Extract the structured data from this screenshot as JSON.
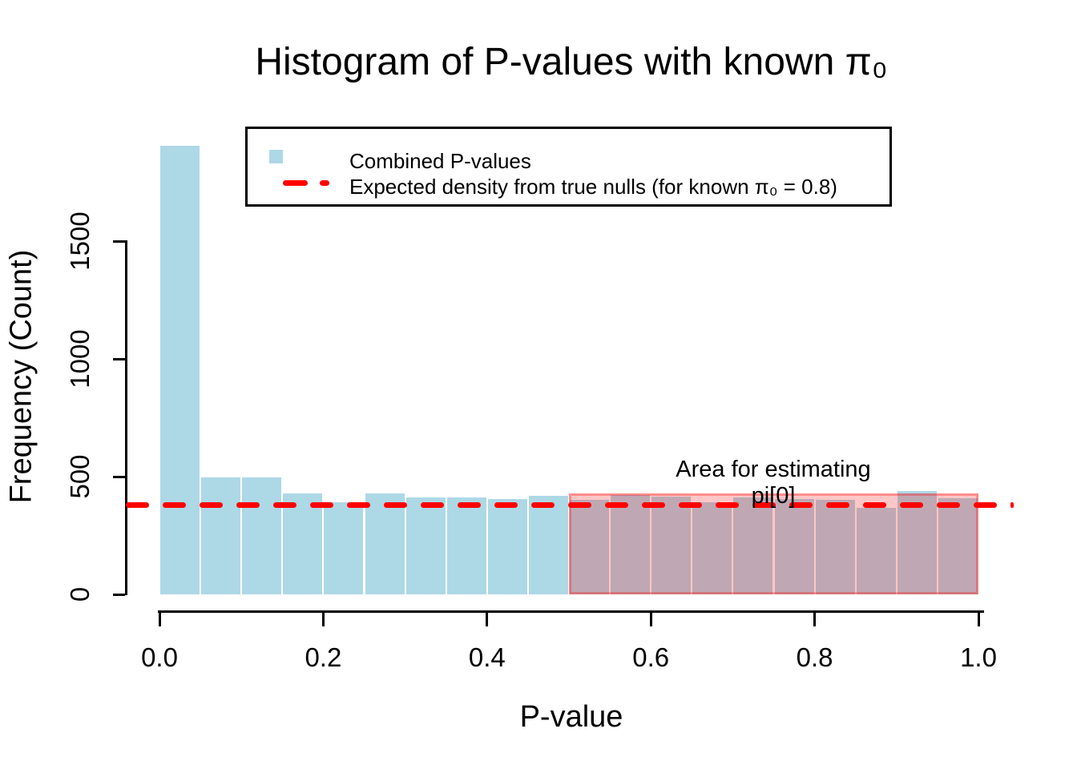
{
  "chart_data": {
    "type": "bar",
    "subtype": "histogram",
    "title": "Histogram of P-values with known π₀",
    "xlabel": "P-value",
    "ylabel": "Frequency (Count)",
    "n_bins": 20,
    "bin_start": 0.0,
    "bin_width": 0.05,
    "values": [
      1905,
      495,
      495,
      430,
      390,
      430,
      410,
      410,
      405,
      418,
      401,
      421,
      414,
      391,
      412,
      405,
      400,
      368,
      440,
      408
    ],
    "x_ticks": {
      "values": [
        0.0,
        0.2,
        0.4,
        0.6,
        0.8,
        1.0
      ],
      "labels": [
        "0.0",
        "0.2",
        "0.4",
        "0.6",
        "0.8",
        "1.0"
      ]
    },
    "y_ticks": {
      "values": [
        0,
        500,
        1000,
        1500
      ],
      "labels": [
        "0",
        "500",
        "1000",
        "1500"
      ]
    },
    "xlim": [
      0.0,
      1.0
    ],
    "ylim": [
      0,
      1950
    ],
    "grid": false,
    "bar_color": "#ADD8E6",
    "bar_border_color": "#FFFFFF",
    "ref_line": {
      "value": 380,
      "color": "#FF0000",
      "style": "dashed",
      "orientation": "horizontal"
    },
    "shaded_region": {
      "x_from": 0.5,
      "x_to": 1.0,
      "y_from": 0,
      "y_to": 428,
      "color": "rgba(255,0,0,0.22)",
      "meaning": "Area for estimating pi[0]"
    },
    "annotation": {
      "lines": [
        "Area for estimating",
        "pi[0]"
      ],
      "x": 0.75,
      "color": "#000000"
    }
  },
  "legend": {
    "position": "top-center",
    "items": [
      {
        "label": "Combined P-values",
        "marker": "square",
        "color": "#ADD8E6"
      },
      {
        "label": "Expected density from true nulls (for known π₀ = 0.8)",
        "marker": "dashed-line",
        "color": "#FF0000"
      }
    ]
  },
  "colors": {
    "bar": "#ADD8E6",
    "ref_line": "#FF0000",
    "shaded_overlay": "rgba(255,0,0,0.22)",
    "axis": "#000000",
    "background": "#FFFFFF"
  }
}
